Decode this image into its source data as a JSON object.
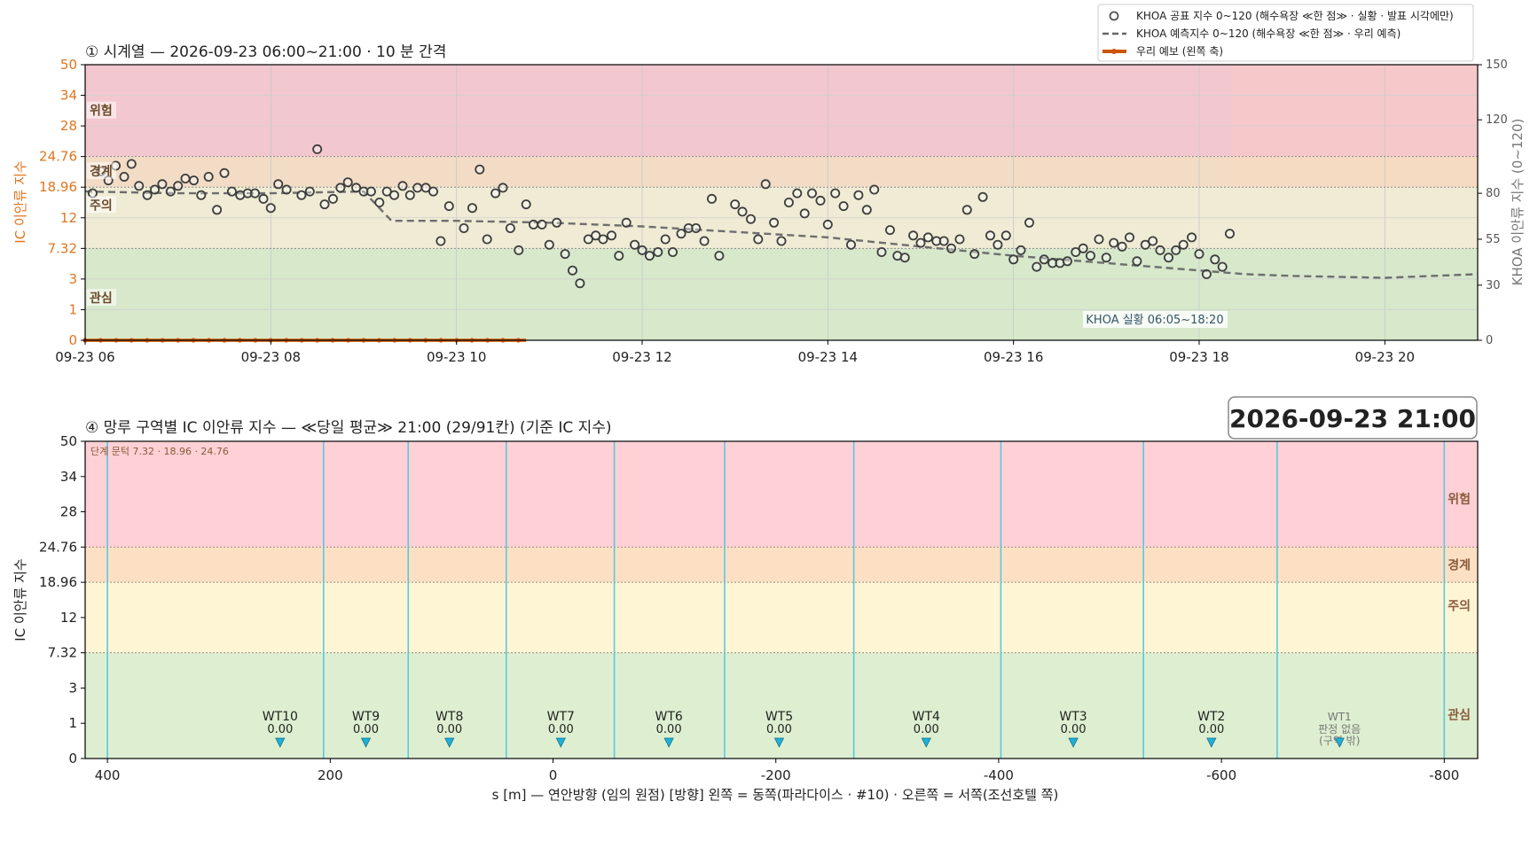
{
  "legend": {
    "items": [
      {
        "label": "KHOA 공표 지수 0~120 (해수욕장 ≪한 점≫ · 실황 · 발표 시각에만)",
        "kind": "circle"
      },
      {
        "label": "KHOA 예측지수 0~120 (해수욕장 ≪한 점≫ · 우리 예측)",
        "kind": "dash"
      },
      {
        "label": "우리 예보 (왼쪽 축)",
        "kind": "orange"
      }
    ]
  },
  "panel1": {
    "title": "① 시계열 — 2026-09-23 06:00~21:00 · 10 분 간격",
    "ylabel_left": "IC 이안류 지수",
    "ylabel_right": "KHOA 이안류 지수 (0~120)",
    "khoa_note": "KHOA 실황 06:05~18:20",
    "zone_labels": [
      "위험",
      "경계",
      "주의",
      "관심"
    ]
  },
  "panel2": {
    "title": "④ 망루 구역별 IC 이안류 지수 — ≪당일 평균≫ 21:00  (29/91칸)   (기준 IC 지수)",
    "datetime_box": "2026-09-23  21:00",
    "threshold_note": "단계 문턱 7.32 · 18.96 · 24.76",
    "xlabel": "s [m] — 연안방향 (임의 원점)     [방향] 왼쪽 = 동쪽(파라다이스 · #10) · 오른쪽 = 서쪽(조선호텔 쪽)",
    "ylabel": "IC 이안류 지수",
    "zone_labels": [
      "위험",
      "경계",
      "주의",
      "관심"
    ]
  },
  "colors": {
    "zone_red": "#f2c7cf",
    "zone_orange": "#f2dcc5",
    "zone_yellow": "#efebd4",
    "zone_green": "#d7e8cb",
    "zone2_red": "#ffd1d6",
    "zone2_orange": "#fde0c4",
    "zone2_yellow": "#fef5d5",
    "zone2_green": "#ddefd0",
    "left_axis": "#e0761f",
    "our_forecast": "#cc5500",
    "khoa_marker": "#555555",
    "tower_line": "#5bc8e0",
    "tower_marker": "#1fb0d8"
  },
  "chart_data": [
    {
      "type": "scatter",
      "title": "① 시계열 — 2026-09-23 06:00~21:00 · 10 분 간격",
      "ylabel": "IC 이안류 지수",
      "y2label": "KHOA 이안류 지수 (0~120)",
      "x_ticks": [
        "09-23 06",
        "09-23 08",
        "09-23 10",
        "09-23 12",
        "09-23 14",
        "09-23 16",
        "09-23 18",
        "09-23 20"
      ],
      "xlim_hours": [
        6,
        21
      ],
      "y_ticks": [
        "0",
        "1",
        "3",
        "7.32",
        "12",
        "18.96",
        "24.76",
        "28",
        "34",
        "50"
      ],
      "y2_ticks": [
        0,
        30,
        55,
        80,
        120,
        150
      ],
      "y2lim": [
        0,
        150
      ],
      "series": [
        {
          "name": "KHOA 공표 지수 0~120 (해수욕장 ≪한 점≫ · 실황 · 발표 시각에만)",
          "axis": "right",
          "points": [
            [
              6.08,
              80
            ],
            [
              6.17,
              92
            ],
            [
              6.25,
              87
            ],
            [
              6.33,
              95
            ],
            [
              6.42,
              89
            ],
            [
              6.5,
              96
            ],
            [
              6.58,
              84
            ],
            [
              6.67,
              79
            ],
            [
              6.75,
              82
            ],
            [
              6.83,
              85
            ],
            [
              6.92,
              81
            ],
            [
              7.0,
              84
            ],
            [
              7.08,
              88
            ],
            [
              7.17,
              87
            ],
            [
              7.25,
              79
            ],
            [
              7.33,
              89
            ],
            [
              7.42,
              71
            ],
            [
              7.5,
              91
            ],
            [
              7.58,
              81
            ],
            [
              7.67,
              79
            ],
            [
              7.75,
              80
            ],
            [
              7.83,
              80
            ],
            [
              7.92,
              77
            ],
            [
              8.0,
              72
            ],
            [
              8.08,
              85
            ],
            [
              8.17,
              82
            ],
            [
              8.33,
              79
            ],
            [
              8.42,
              81
            ],
            [
              8.5,
              104
            ],
            [
              8.58,
              74
            ],
            [
              8.67,
              77
            ],
            [
              8.75,
              83
            ],
            [
              8.83,
              86
            ],
            [
              8.92,
              83
            ],
            [
              9.0,
              81
            ],
            [
              9.08,
              81
            ],
            [
              9.17,
              75
            ],
            [
              9.25,
              81
            ],
            [
              9.33,
              79
            ],
            [
              9.42,
              84
            ],
            [
              9.5,
              79
            ],
            [
              9.58,
              83
            ],
            [
              9.67,
              83
            ],
            [
              9.75,
              81
            ],
            [
              9.83,
              54
            ],
            [
              9.92,
              73
            ],
            [
              10.08,
              61
            ],
            [
              10.17,
              72
            ],
            [
              10.25,
              93
            ],
            [
              10.33,
              55
            ],
            [
              10.42,
              80
            ],
            [
              10.5,
              83
            ],
            [
              10.58,
              61
            ],
            [
              10.67,
              49
            ],
            [
              10.75,
              74
            ],
            [
              10.83,
              63
            ],
            [
              10.92,
              63
            ],
            [
              11.0,
              52
            ],
            [
              11.08,
              64
            ],
            [
              11.17,
              47
            ],
            [
              11.25,
              38
            ],
            [
              11.33,
              31
            ],
            [
              11.42,
              55
            ],
            [
              11.5,
              57
            ],
            [
              11.58,
              55
            ],
            [
              11.67,
              57
            ],
            [
              11.75,
              46
            ],
            [
              11.83,
              64
            ],
            [
              11.92,
              52
            ],
            [
              12.0,
              49
            ],
            [
              12.08,
              46
            ],
            [
              12.17,
              48
            ],
            [
              12.25,
              55
            ],
            [
              12.33,
              48
            ],
            [
              12.42,
              58
            ],
            [
              12.5,
              61
            ],
            [
              12.58,
              61
            ],
            [
              12.67,
              54
            ],
            [
              12.75,
              77
            ],
            [
              12.83,
              46
            ],
            [
              13.0,
              74
            ],
            [
              13.08,
              70
            ],
            [
              13.17,
              66
            ],
            [
              13.25,
              55
            ],
            [
              13.33,
              85
            ],
            [
              13.42,
              64
            ],
            [
              13.5,
              54
            ],
            [
              13.58,
              75
            ],
            [
              13.67,
              80
            ],
            [
              13.75,
              69
            ],
            [
              13.83,
              80
            ],
            [
              13.92,
              76
            ],
            [
              14.0,
              63
            ],
            [
              14.08,
              80
            ],
            [
              14.17,
              73
            ],
            [
              14.25,
              52
            ],
            [
              14.33,
              79
            ],
            [
              14.42,
              71
            ],
            [
              14.5,
              82
            ],
            [
              14.58,
              48
            ],
            [
              14.67,
              60
            ],
            [
              14.75,
              46
            ],
            [
              14.83,
              45
            ],
            [
              14.92,
              57
            ],
            [
              15.0,
              53
            ],
            [
              15.08,
              56
            ],
            [
              15.17,
              54
            ],
            [
              15.25,
              54
            ],
            [
              15.33,
              50
            ],
            [
              15.42,
              55
            ],
            [
              15.5,
              71
            ],
            [
              15.58,
              47
            ],
            [
              15.67,
              78
            ],
            [
              15.75,
              57
            ],
            [
              15.83,
              52
            ],
            [
              15.92,
              57
            ],
            [
              16.0,
              44
            ],
            [
              16.08,
              49
            ],
            [
              16.17,
              64
            ],
            [
              16.25,
              40
            ],
            [
              16.33,
              44
            ],
            [
              16.42,
              42
            ],
            [
              16.5,
              42
            ],
            [
              16.58,
              43
            ],
            [
              16.67,
              48
            ],
            [
              16.75,
              50
            ],
            [
              16.83,
              46
            ],
            [
              16.92,
              55
            ],
            [
              17.0,
              45
            ],
            [
              17.08,
              53
            ],
            [
              17.17,
              51
            ],
            [
              17.25,
              56
            ],
            [
              17.33,
              43
            ],
            [
              17.42,
              52
            ],
            [
              17.5,
              54
            ],
            [
              17.58,
              49
            ],
            [
              17.67,
              45
            ],
            [
              17.75,
              49
            ],
            [
              17.83,
              52
            ],
            [
              17.92,
              56
            ],
            [
              18.0,
              47
            ],
            [
              18.08,
              36
            ],
            [
              18.17,
              44
            ],
            [
              18.25,
              40
            ],
            [
              18.33,
              58
            ]
          ]
        },
        {
          "name": "KHOA 예측지수 0~120 (해수욕장 ≪한 점≫ · 우리 예측)",
          "axis": "right",
          "points": [
            [
              6.0,
              81
            ],
            [
              7.0,
              80
            ],
            [
              8.0,
              80
            ],
            [
              9.0,
              81
            ],
            [
              9.3,
              65
            ],
            [
              10.0,
              65
            ],
            [
              11.0,
              64
            ],
            [
              12.0,
              62
            ],
            [
              13.0,
              59
            ],
            [
              14.0,
              56
            ],
            [
              15.0,
              51
            ],
            [
              16.0,
              46
            ],
            [
              17.0,
              42
            ],
            [
              18.0,
              38
            ],
            [
              18.5,
              36
            ],
            [
              19.0,
              35
            ],
            [
              20.0,
              34
            ],
            [
              21.0,
              36
            ]
          ]
        },
        {
          "name": "우리 예보 (왼쪽 축)",
          "axis": "left",
          "x_range": [
            6.0,
            10.75
          ],
          "value": 0
        }
      ]
    },
    {
      "type": "bar",
      "title": "④ 망루 구역별 IC 이안류 지수 — ≪당일 평균≫ 21:00  (29/91칸)   (기준 IC 지수)",
      "xlabel": "s [m] — 연안방향 (임의 원점)     [방향] 왼쪽 = 동쪽(파라다이스 · #10) · 오른쪽 = 서쪽(조선호텔 쪽)",
      "ylabel": "IC 이안류 지수",
      "x_ticks": [
        400,
        200,
        0,
        -200,
        -400,
        -600,
        -800
      ],
      "xlim": [
        420,
        -830
      ],
      "y_ticks": [
        "0",
        "1",
        "3",
        "7.32",
        "12",
        "18.96",
        "24.76",
        "28",
        "34",
        "50"
      ],
      "thresholds": [
        7.32,
        18.96,
        24.76
      ],
      "zone_boundaries_s": [
        400,
        206,
        130,
        42,
        -55,
        -154,
        -270,
        -402,
        -530,
        -650,
        -800
      ],
      "towers": [
        {
          "name": "WT10",
          "value": "0.00",
          "s": 245
        },
        {
          "name": "WT9",
          "value": "0.00",
          "s": 168
        },
        {
          "name": "WT8",
          "value": "0.00",
          "s": 93
        },
        {
          "name": "WT7",
          "value": "0.00",
          "s": -7
        },
        {
          "name": "WT6",
          "value": "0.00",
          "s": -104
        },
        {
          "name": "WT5",
          "value": "0.00",
          "s": -203
        },
        {
          "name": "WT4",
          "value": "0.00",
          "s": -335
        },
        {
          "name": "WT3",
          "value": "0.00",
          "s": -467
        },
        {
          "name": "WT2",
          "value": "0.00",
          "s": -591
        },
        {
          "name": "WT1",
          "value": "판정 없음",
          "note": "(구역 밖)",
          "s": -706
        }
      ]
    }
  ]
}
